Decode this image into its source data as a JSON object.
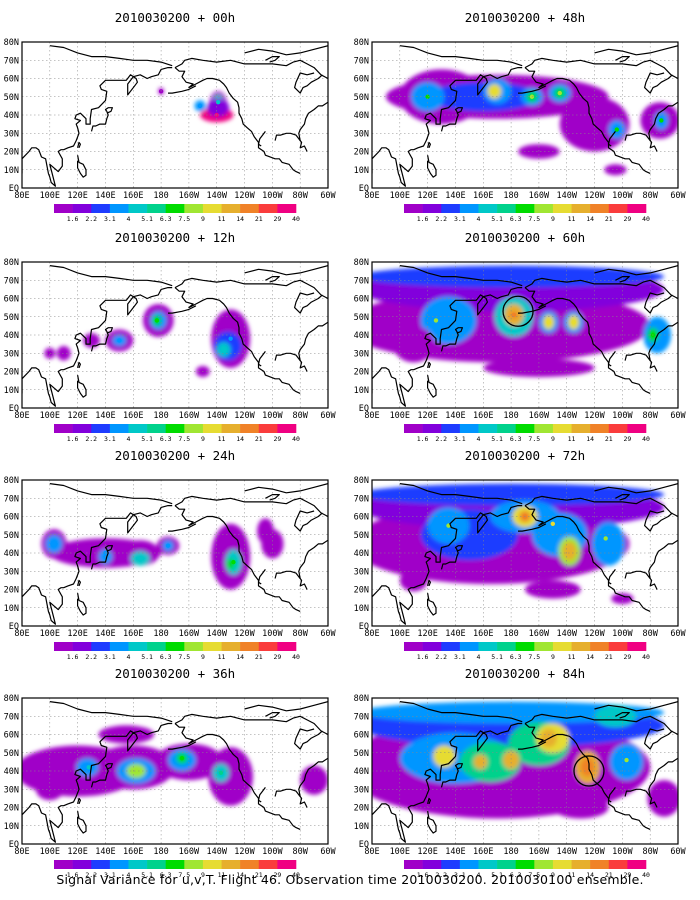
{
  "figure": {
    "footer": "Signal Variance for u,v,T. Flight 46. Observation time 2010030200. 2010030100 ensemble.",
    "colorbar": {
      "levels": [
        "1.6",
        "2.2",
        "3.1",
        "4",
        "5.1",
        "6.3",
        "7.5",
        "9",
        "11",
        "14",
        "21",
        "29",
        "40"
      ],
      "colors": [
        "#a000c8",
        "#8200dc",
        "#1e3cff",
        "#0096ff",
        "#00c8c8",
        "#00d28c",
        "#00dc00",
        "#a0e632",
        "#e6dc32",
        "#e6af2d",
        "#f08228",
        "#fa3c3c",
        "#f00082"
      ]
    }
  },
  "chart_data": [
    {
      "type": "heatmap",
      "title": "2010030200 + 00h",
      "x_ticks": [
        "80E",
        "100E",
        "120E",
        "140E",
        "160E",
        "180",
        "160W",
        "140W",
        "120W",
        "100W",
        "80W",
        "60W"
      ],
      "y_ticks": [
        "EQ",
        "10N",
        "20N",
        "30N",
        "40N",
        "50N",
        "60N",
        "70N",
        "80N"
      ],
      "xlim": [
        "80E",
        "60W"
      ],
      "ylim": [
        "EQ",
        "80N"
      ],
      "grid": true,
      "features": [
        {
          "lon": -152,
          "lat": 45,
          "level": "4"
        },
        {
          "lon": -139,
          "lat": 47,
          "level": "5.1"
        },
        {
          "lon": -140,
          "lat": 40,
          "level": "40"
        },
        {
          "lon": 180,
          "lat": 53,
          "level": "1.6"
        }
      ]
    },
    {
      "type": "heatmap",
      "title": "2010030200 + 12h",
      "x_ticks": [
        "80E",
        "100E",
        "120E",
        "140E",
        "160E",
        "180",
        "160W",
        "140W",
        "120W",
        "100W",
        "80W",
        "60W"
      ],
      "y_ticks": [
        "EQ",
        "10N",
        "20N",
        "30N",
        "40N",
        "50N",
        "60N",
        "70N",
        "80N"
      ],
      "xlim": [
        "80E",
        "60W"
      ],
      "ylim": [
        "EQ",
        "80N"
      ],
      "grid": true,
      "features": [
        {
          "lon": 177,
          "lat": 48,
          "level": "7.5"
        },
        {
          "lon": 150,
          "lat": 37,
          "level": "4"
        },
        {
          "lon": -130,
          "lat": 38,
          "level": "4"
        },
        {
          "lon": -135,
          "lat": 32,
          "level": "5.1"
        },
        {
          "lon": 100,
          "lat": 30,
          "level": "1.6"
        }
      ]
    },
    {
      "type": "heatmap",
      "title": "2010030200 + 24h",
      "x_ticks": [
        "80E",
        "100E",
        "120E",
        "140E",
        "160E",
        "180",
        "160W",
        "140W",
        "120W",
        "100W",
        "80W",
        "60W"
      ],
      "y_ticks": [
        "EQ",
        "10N",
        "20N",
        "30N",
        "40N",
        "50N",
        "60N",
        "70N",
        "80N"
      ],
      "xlim": [
        "80E",
        "60W"
      ],
      "ylim": [
        "EQ",
        "80N"
      ],
      "grid": true,
      "features": [
        {
          "lon": -128,
          "lat": 35,
          "level": "7.5"
        },
        {
          "lon": 165,
          "lat": 37,
          "level": "5.1"
        },
        {
          "lon": 103,
          "lat": 45,
          "level": "4"
        },
        {
          "lon": 140,
          "lat": 40,
          "level": "4"
        },
        {
          "lon": -175,
          "lat": 44,
          "level": "4"
        }
      ]
    },
    {
      "type": "heatmap",
      "title": "2010030200 + 36h",
      "x_ticks": [
        "80E",
        "100E",
        "120E",
        "140E",
        "160E",
        "180",
        "160W",
        "140W",
        "120W",
        "100W",
        "80W",
        "60W"
      ],
      "y_ticks": [
        "EQ",
        "10N",
        "20N",
        "30N",
        "40N",
        "50N",
        "60N",
        "70N",
        "80N"
      ],
      "xlim": [
        "80E",
        "60W"
      ],
      "ylim": [
        "EQ",
        "80N"
      ],
      "grid": true,
      "features": [
        {
          "lon": 162,
          "lat": 40,
          "level": "9"
        },
        {
          "lon": -165,
          "lat": 47,
          "level": "7.5"
        },
        {
          "lon": -137,
          "lat": 39,
          "level": "6.3"
        },
        {
          "lon": 128,
          "lat": 42,
          "level": "5.1"
        }
      ]
    },
    {
      "type": "heatmap",
      "title": "2010030200 + 48h",
      "x_ticks": [
        "80E",
        "100E",
        "120E",
        "140E",
        "160E",
        "180",
        "160W",
        "140W",
        "120W",
        "100W",
        "80W",
        "60W"
      ],
      "y_ticks": [
        "EQ",
        "10N",
        "20N",
        "30N",
        "40N",
        "50N",
        "60N",
        "70N",
        "80N"
      ],
      "xlim": [
        "80E",
        "60W"
      ],
      "ylim": [
        "EQ",
        "80N"
      ],
      "grid": true,
      "features": [
        {
          "lon": 168,
          "lat": 53,
          "level": "11"
        },
        {
          "lon": -165,
          "lat": 50,
          "level": "9"
        },
        {
          "lon": -145,
          "lat": 52,
          "level": "9"
        },
        {
          "lon": 120,
          "lat": 50,
          "level": "7.5"
        },
        {
          "lon": -104,
          "lat": 32,
          "level": "7.5"
        },
        {
          "lon": -72,
          "lat": 37,
          "level": "7.5"
        }
      ]
    },
    {
      "type": "heatmap",
      "title": "2010030200 + 60h",
      "x_ticks": [
        "80E",
        "100E",
        "120E",
        "140E",
        "160E",
        "180",
        "160W",
        "140W",
        "120W",
        "100W",
        "80W",
        "60W"
      ],
      "y_ticks": [
        "EQ",
        "10N",
        "20N",
        "30N",
        "40N",
        "50N",
        "60N",
        "70N",
        "80N"
      ],
      "xlim": [
        "80E",
        "60W"
      ],
      "ylim": [
        "EQ",
        "80N"
      ],
      "grid": true,
      "features": [
        {
          "lon": -178,
          "lat": 51,
          "level": "21"
        },
        {
          "lon": -153,
          "lat": 47,
          "level": "11"
        },
        {
          "lon": -135,
          "lat": 47,
          "level": "11"
        },
        {
          "lon": 126,
          "lat": 48,
          "level": "9"
        },
        {
          "lon": -78,
          "lat": 40,
          "level": "7.5"
        }
      ],
      "markers": [
        {
          "shape": "circle",
          "lon": -175,
          "lat": 53
        }
      ]
    },
    {
      "type": "heatmap",
      "title": "2010030200 + 72h",
      "x_ticks": [
        "80E",
        "100E",
        "120E",
        "140E",
        "160E",
        "180",
        "160W",
        "140W",
        "120W",
        "100W",
        "80W",
        "60W"
      ],
      "y_ticks": [
        "EQ",
        "10N",
        "20N",
        "30N",
        "40N",
        "50N",
        "60N",
        "70N",
        "80N"
      ],
      "xlim": [
        "80E",
        "60W"
      ],
      "ylim": [
        "EQ",
        "80N"
      ],
      "grid": true,
      "features": [
        {
          "lon": -170,
          "lat": 60,
          "level": "21"
        },
        {
          "lon": -138,
          "lat": 41,
          "level": "14"
        },
        {
          "lon": 135,
          "lat": 55,
          "level": "9"
        },
        {
          "lon": -150,
          "lat": 56,
          "level": "11"
        },
        {
          "lon": -112,
          "lat": 48,
          "level": "9"
        }
      ]
    },
    {
      "type": "heatmap",
      "title": "2010030200 + 84h",
      "x_ticks": [
        "80E",
        "100E",
        "120E",
        "140E",
        "160E",
        "180",
        "160W",
        "140W",
        "120W",
        "100W",
        "80W",
        "60W"
      ],
      "y_ticks": [
        "EQ",
        "10N",
        "20N",
        "30N",
        "40N",
        "50N",
        "60N",
        "70N",
        "80N"
      ],
      "xlim": [
        "80E",
        "60W"
      ],
      "ylim": [
        "EQ",
        "80N"
      ],
      "grid": true,
      "features": [
        {
          "lon": -153,
          "lat": 58,
          "level": "14"
        },
        {
          "lon": -125,
          "lat": 42,
          "level": "21"
        },
        {
          "lon": 158,
          "lat": 45,
          "level": "14"
        },
        {
          "lon": -180,
          "lat": 46,
          "level": "14"
        },
        {
          "lon": 132,
          "lat": 48,
          "level": "11"
        },
        {
          "lon": -97,
          "lat": 46,
          "level": "9"
        }
      ],
      "markers": [
        {
          "shape": "circle",
          "lon": -124,
          "lat": 40
        }
      ]
    }
  ]
}
